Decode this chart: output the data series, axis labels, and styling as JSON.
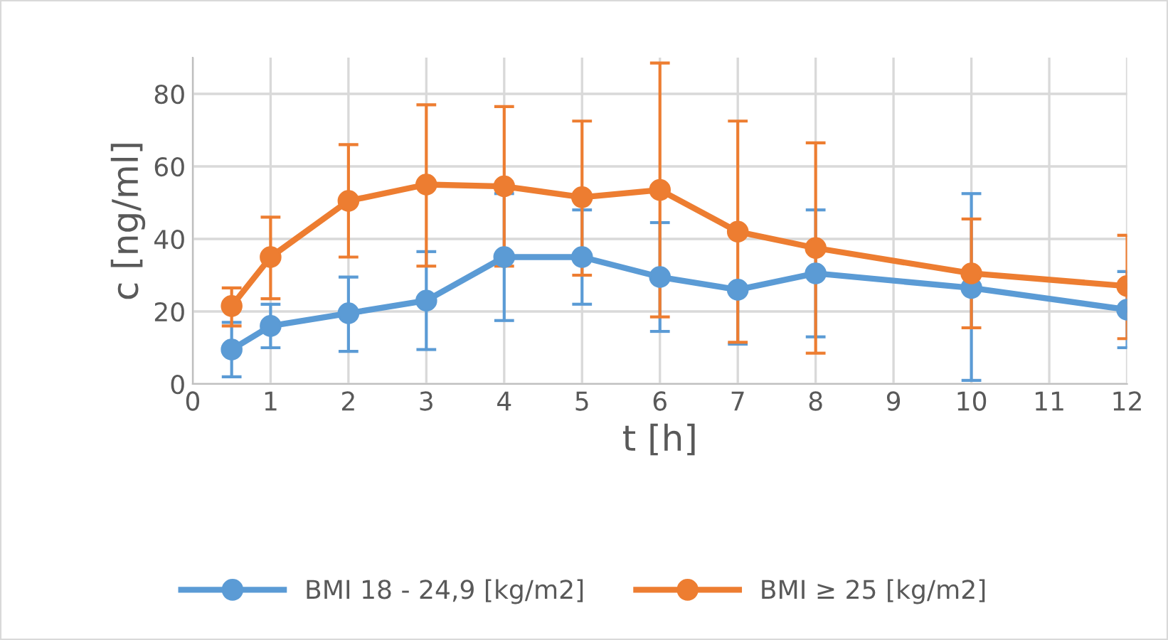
{
  "chart_data": {
    "type": "line",
    "xlabel": "t [h]",
    "ylabel": "c [ng/ml]",
    "x": [
      0.5,
      1,
      2,
      3,
      4,
      5,
      6,
      7,
      8,
      10,
      12
    ],
    "xlim": [
      0,
      12
    ],
    "xticks": [
      0,
      1,
      2,
      3,
      4,
      5,
      6,
      7,
      8,
      9,
      10,
      11,
      12
    ],
    "ylim": [
      0,
      90
    ],
    "yticks": [
      0,
      20,
      40,
      60,
      80
    ],
    "grid": true,
    "legend": "bottom",
    "marker": "circle",
    "line_style": "solid",
    "series": [
      {
        "name": "BMI 18 - 24,9 [kg/m2]",
        "color": "#5b9bd5",
        "values": [
          9.5,
          16,
          19.5,
          23,
          35,
          35,
          29.5,
          26,
          30.5,
          26.5,
          20.5
        ],
        "errors": [
          [
            2,
            17
          ],
          [
            10,
            22
          ],
          [
            9,
            29.5
          ],
          [
            9.5,
            36.5
          ],
          [
            17.5,
            52.5
          ],
          [
            22,
            48
          ],
          [
            14.5,
            44.5
          ],
          [
            11,
            26
          ],
          [
            13,
            48
          ],
          [
            1,
            52.5
          ],
          [
            10,
            31
          ]
        ]
      },
      {
        "name": "BMI ≥ 25 [kg/m2]",
        "color": "#ed7d31",
        "values": [
          21.5,
          35,
          50.5,
          55,
          54.5,
          51.5,
          53.5,
          42,
          37.5,
          30.5,
          27
        ],
        "errors": [
          [
            16,
            26.5
          ],
          [
            23.5,
            46
          ],
          [
            35,
            66
          ],
          [
            32.5,
            77
          ],
          [
            32.5,
            76.5
          ],
          [
            30,
            72.5
          ],
          [
            18.5,
            88.5
          ],
          [
            11.5,
            72.5
          ],
          [
            8.5,
            66.5
          ],
          [
            15.5,
            45.5
          ],
          [
            12.5,
            41
          ]
        ]
      }
    ]
  }
}
